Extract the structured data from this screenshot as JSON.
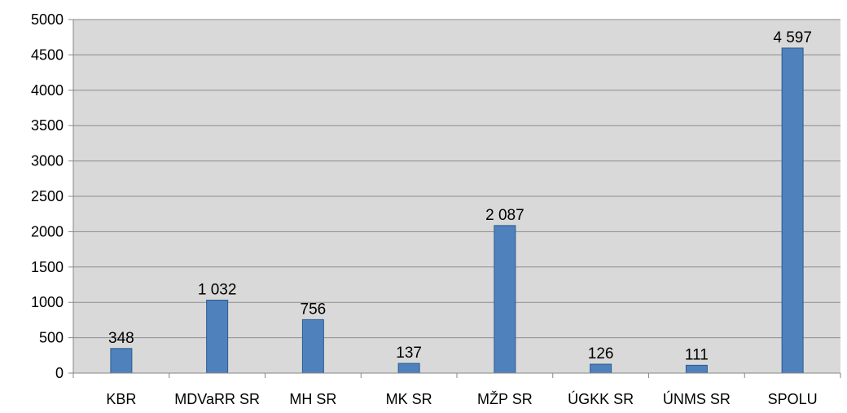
{
  "chart_data": {
    "type": "bar",
    "categories": [
      "KBR",
      "MDVaRR SR",
      "MH SR",
      "MK SR",
      "MŽP SR",
      "ÚGKK SR",
      "ÚNMS SR",
      "SPOLU"
    ],
    "values": [
      348,
      1032,
      756,
      137,
      2087,
      126,
      111,
      4597
    ],
    "data_labels": [
      "348",
      "1 032",
      "756",
      "137",
      "2 087",
      "126",
      "111",
      "4 597"
    ],
    "y_ticks": [
      "0",
      "500",
      "1000",
      "1500",
      "2000",
      "2500",
      "3000",
      "3500",
      "4000",
      "4500",
      "5000"
    ],
    "ylim": [
      0,
      5000
    ],
    "grid": true,
    "legend": "none",
    "colors": {
      "bar_fill": "#4f81bd",
      "bar_stroke": "#2c5d8f",
      "plot_background": "#d9d9d9",
      "gridline": "#8c8c8c",
      "axis": "#868686"
    }
  }
}
